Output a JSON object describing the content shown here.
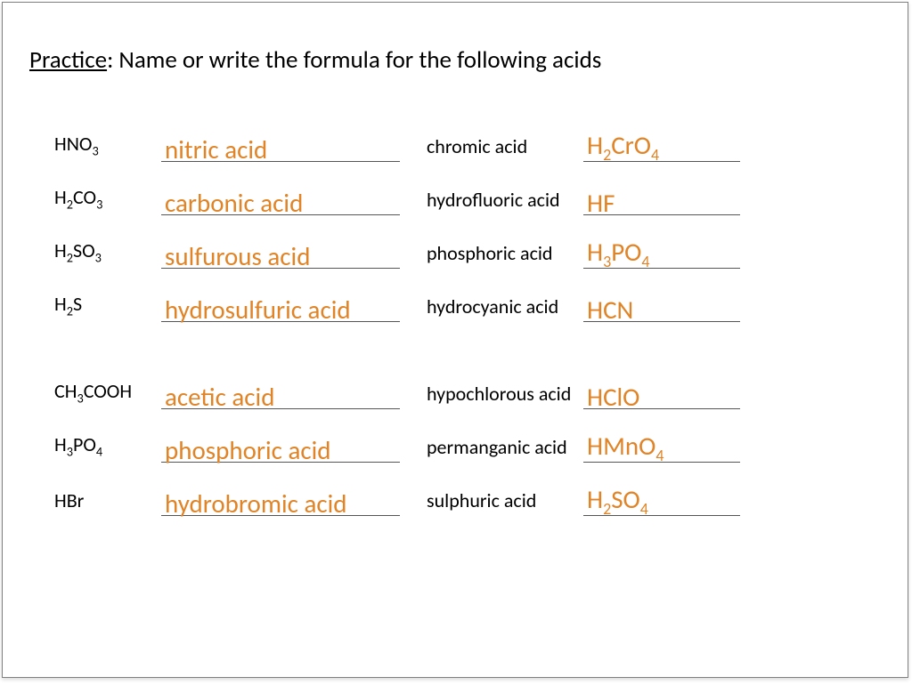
{
  "instruction": {
    "label": "Practice",
    "text": ": Name or write the formula for the following acids"
  },
  "answer_color": "#e08427",
  "text_color": "#000000",
  "rows": [
    {
      "leftPrompt": "HNO<sub>3</sub>",
      "leftAnswer": "nitric acid",
      "rightPrompt": "chromic acid",
      "rightAnswer": "H<sub>2</sub>CrO<sub>4</sub>"
    },
    {
      "leftPrompt": "H<sub>2</sub>CO<sub>3</sub>",
      "leftAnswer": "carbonic acid",
      "rightPrompt": "hydrofluoric acid",
      "rightAnswer": "HF"
    },
    {
      "leftPrompt": "H<sub>2</sub>SO<sub>3</sub>",
      "leftAnswer": "sulfurous acid",
      "rightPrompt": "phosphoric acid",
      "rightAnswer": "H<sub>3</sub>PO<sub>4</sub>"
    },
    {
      "leftPrompt": "H<sub>2</sub>S",
      "leftAnswer": "hydrosulfuric acid",
      "rightPrompt": "hydrocyanic acid",
      "rightAnswer": "HCN"
    },
    {
      "gap": true
    },
    {
      "leftPrompt": "CH<sub>3</sub>COOH",
      "leftAnswer": "acetic acid",
      "rightPrompt": "hypochlorous acid",
      "rightAnswer": "HClO"
    },
    {
      "leftPrompt": "H<sub>3</sub>PO<sub>4</sub>",
      "leftAnswer": "phosphoric acid",
      "rightPrompt": "permanganic acid",
      "rightAnswer": "HMnO<sub>4</sub>"
    },
    {
      "leftPrompt": "HBr",
      "leftAnswer": "hydrobromic acid",
      "rightPrompt": "sulphuric acid",
      "rightAnswer": "H<sub>2</sub>SO<sub>4</sub>"
    }
  ]
}
